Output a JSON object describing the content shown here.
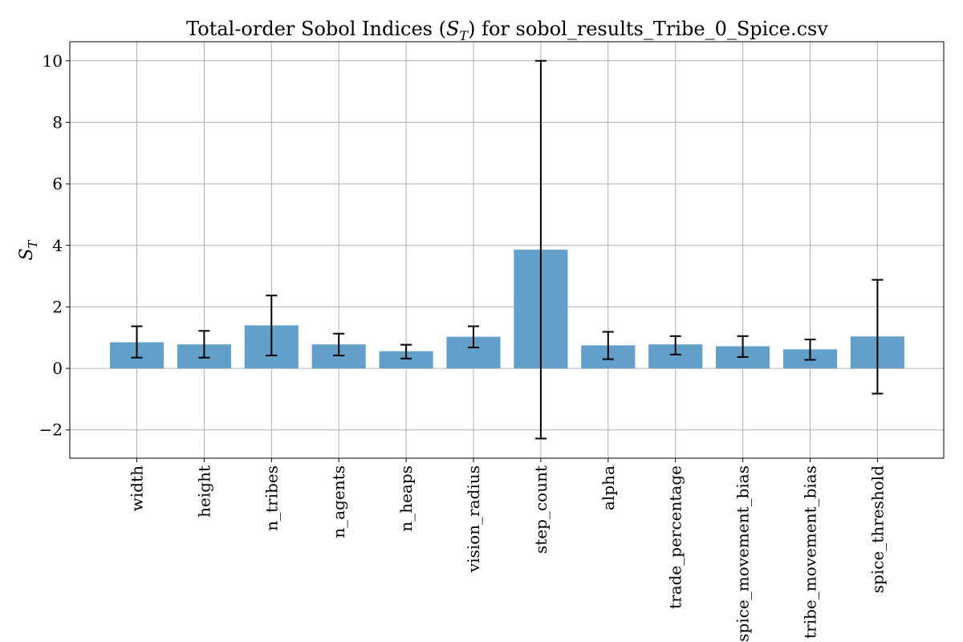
{
  "chart_data": {
    "type": "bar",
    "title": "Total-order Sobol Indices (S_T) for sobol_results_Tribe_0_Spice.csv",
    "title_parts": {
      "prefix": "Total-order Sobol Indices (",
      "symbol": "S",
      "symbol_sub": "T",
      "suffix": ") for sobol_results_Tribe_0_Spice.csv"
    },
    "xlabel": "",
    "ylabel": "S_T",
    "ylabel_parts": {
      "symbol": "S",
      "symbol_sub": "T"
    },
    "categories": [
      "width",
      "height",
      "n_tribes",
      "n_agents",
      "n_heaps",
      "vision_radius",
      "step_count",
      "alpha",
      "trade_percentage",
      "spice_movement_bias",
      "tribe_movement_bias",
      "spice_threshold"
    ],
    "values": [
      0.85,
      0.78,
      1.4,
      0.78,
      0.56,
      1.03,
      3.86,
      0.75,
      0.78,
      0.72,
      0.62,
      1.04
    ],
    "error_low": [
      0.35,
      0.35,
      0.42,
      0.42,
      0.32,
      0.68,
      -2.28,
      0.3,
      0.45,
      0.37,
      0.28,
      -0.82
    ],
    "error_high": [
      1.37,
      1.22,
      2.37,
      1.13,
      0.77,
      1.37,
      10.0,
      1.19,
      1.05,
      1.05,
      0.94,
      2.88
    ],
    "ylim": [
      -2.92,
      10.62
    ],
    "yticks": [
      -2,
      0,
      2,
      4,
      6,
      8,
      10
    ],
    "ytick_labels": [
      "−2",
      "0",
      "2",
      "4",
      "6",
      "8",
      "10"
    ],
    "grid": true,
    "bar_color": "#62a0ca",
    "errorbar_color": "#000000"
  }
}
